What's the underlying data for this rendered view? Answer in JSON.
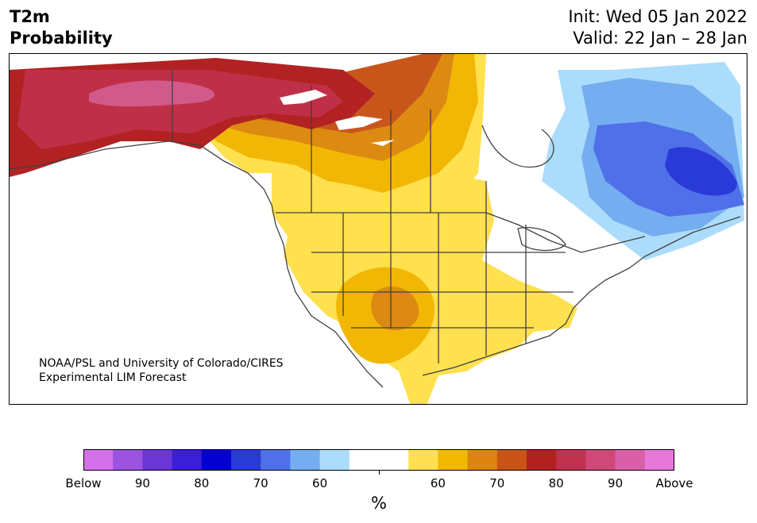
{
  "header": {
    "variable": "T2m",
    "product": "Probability",
    "init": "Init: Wed 05 Jan 2022",
    "valid": "Valid: 22 Jan – 28 Jan"
  },
  "credit": {
    "line1": "NOAA/PSL and University of Colorado/CIRES",
    "line2": "Experimental LIM Forecast"
  },
  "colorbar": {
    "unit": "%",
    "colors": [
      "#d470e8",
      "#9b53e0",
      "#6b35d8",
      "#3a1ed8",
      "#0300d0",
      "#2a3ad8",
      "#4f70e8",
      "#74aef0",
      "#acdcfc",
      "#ffffff",
      "#ffffff",
      "#ffe050",
      "#f0b800",
      "#dc8410",
      "#c85418",
      "#b42020",
      "#c03250",
      "#d04878",
      "#d960a8",
      "#e878d8"
    ],
    "labels": [
      "Below",
      "90",
      "80",
      "70",
      "60",
      "60",
      "70",
      "80",
      "90",
      "Above"
    ]
  },
  "map": {
    "region": "North America",
    "colors": {
      "above_90": "#d25a8a",
      "above_80": "#bf3048",
      "above_75": "#b22222",
      "above_70": "#c8561a",
      "above_65": "#dc8a12",
      "above_60": "#f2b705",
      "above_55": "#ffe04f",
      "below_55": "#acdcfc",
      "below_60": "#74aef0",
      "below_70": "#4f70e8",
      "below_80": "#2a3ad8",
      "land_line": "#404040"
    }
  }
}
